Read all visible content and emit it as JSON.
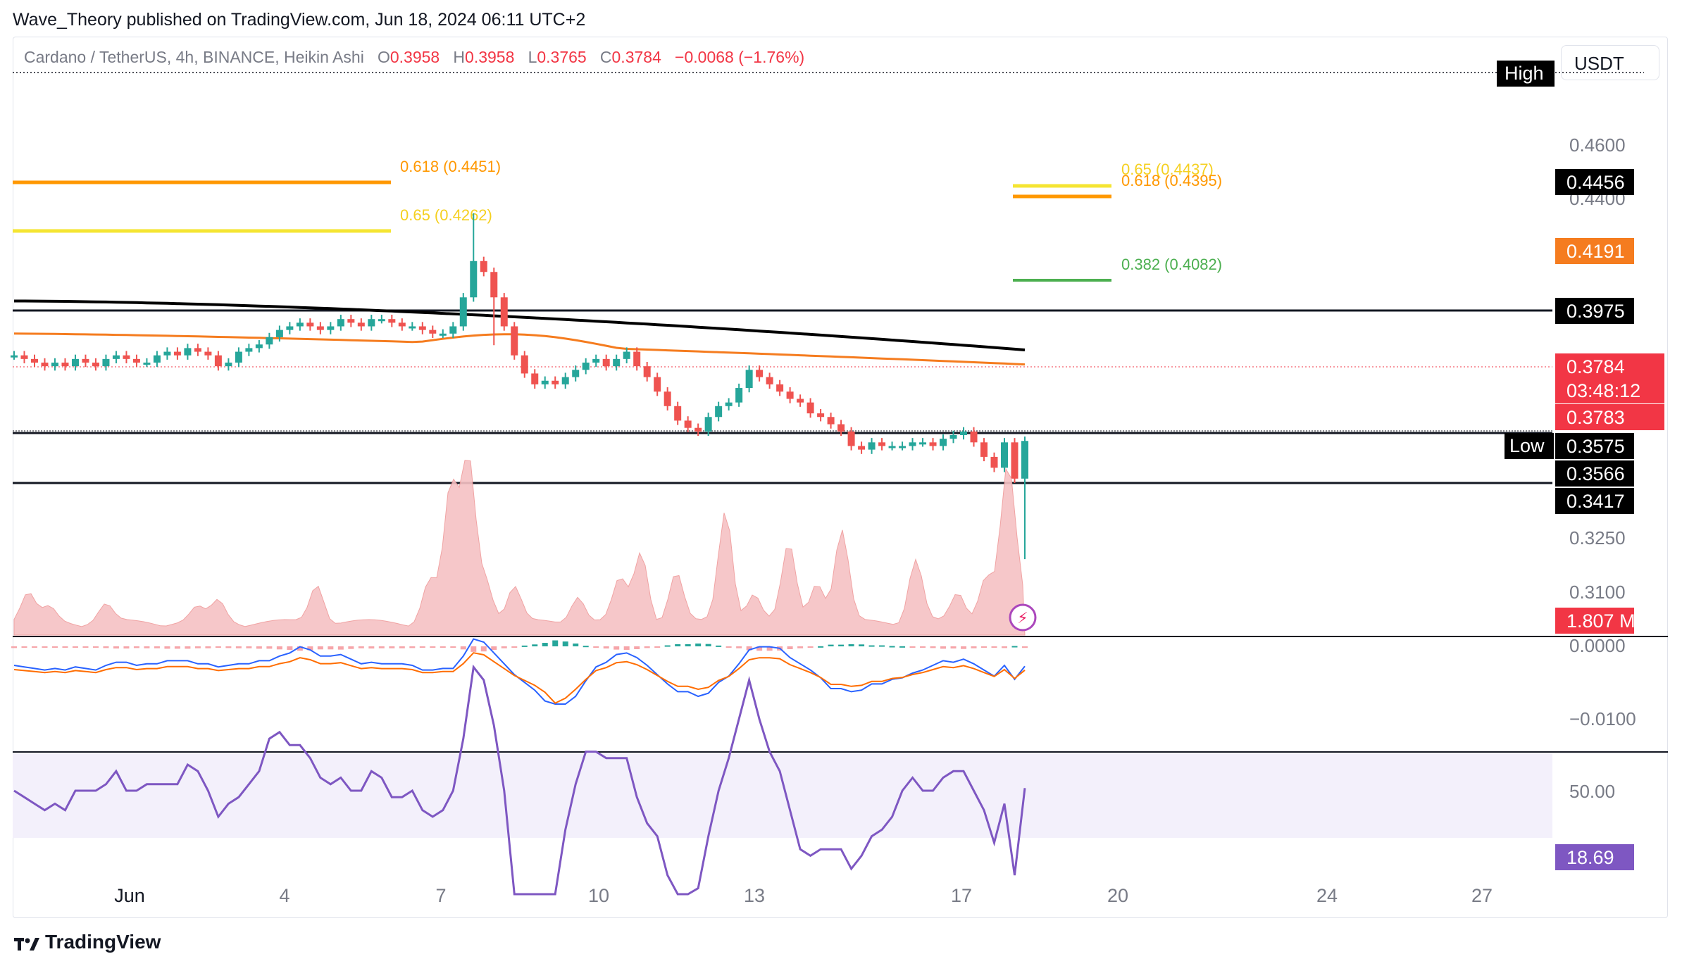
{
  "header": {
    "text": "Wave_Theory published on TradingView.com, Jun 18, 2024 06:11 UTC+2"
  },
  "legend": {
    "symbol": "Cardano / TetherUS, 4h, BINANCE, Heikin Ashi",
    "o_label": "O",
    "o": "0.3958",
    "h_label": "H",
    "h": "0.3958",
    "l_label": "L",
    "l": "0.3765",
    "c_label": "C",
    "c": "0.3784",
    "change": "−0.0068 (−1.76%)"
  },
  "currency": "USDT",
  "footer": {
    "brand": "TradingView"
  },
  "colors": {
    "up": "#26a69a",
    "down": "#ef5350",
    "ema_orange": "#f57c1f",
    "ema_black": "#000000",
    "fib_yellow": "#f5e532",
    "fib_orange": "#ff9800",
    "fib_green": "#4caf50",
    "macd_line": "#2962ff",
    "signal_line": "#ff6d00",
    "rsi_line": "#7e57c2"
  },
  "chart_data": [
    {
      "type": "candlestick",
      "x_ticks": [
        "Jun",
        "4",
        "7",
        "10",
        "13",
        "17",
        "20",
        "24",
        "27"
      ],
      "price_axis_ticks": [
        "0.4600",
        "0.4400",
        "0.3250",
        "0.3100"
      ],
      "price_labels": [
        {
          "value": "0.4456",
          "tag": ""
        },
        {
          "value": "0.4191",
          "tag": ""
        },
        {
          "value": "0.3975",
          "tag": ""
        },
        {
          "value": "0.3784",
          "tag": ""
        },
        {
          "value": "03:48:12",
          "tag": ""
        },
        {
          "value": "0.3783",
          "tag": ""
        },
        {
          "value": "0.3575",
          "tag": "Low"
        },
        {
          "value": "0.3566",
          "tag": ""
        },
        {
          "value": "0.3417",
          "tag": ""
        }
      ],
      "high_tag": "High",
      "fib_left": [
        {
          "label": "0.618 (0.4451)"
        },
        {
          "label": "0.65 (0.4262)"
        }
      ],
      "fib_right": [
        {
          "label": "0.65 (0.4437)"
        },
        {
          "label": "0.618 (0.4395)"
        },
        {
          "label": "0.382 (0.4082)"
        }
      ],
      "candles_close": [
        0.402,
        0.401,
        0.4,
        0.399,
        0.4,
        0.399,
        0.401,
        0.4,
        0.399,
        0.401,
        0.402,
        0.401,
        0.4,
        0.4,
        0.402,
        0.403,
        0.402,
        0.404,
        0.403,
        0.402,
        0.399,
        0.4,
        0.403,
        0.404,
        0.405,
        0.407,
        0.409,
        0.41,
        0.411,
        0.41,
        0.409,
        0.41,
        0.412,
        0.411,
        0.41,
        0.412,
        0.412,
        0.411,
        0.41,
        0.41,
        0.409,
        0.408,
        0.408,
        0.41,
        0.418,
        0.428,
        0.425,
        0.418,
        0.41,
        0.402,
        0.397,
        0.394,
        0.395,
        0.394,
        0.396,
        0.398,
        0.4,
        0.401,
        0.399,
        0.401,
        0.403,
        0.399,
        0.396,
        0.392,
        0.388,
        0.384,
        0.382,
        0.381,
        0.385,
        0.388,
        0.389,
        0.393,
        0.398,
        0.396,
        0.394,
        0.392,
        0.39,
        0.389,
        0.386,
        0.385,
        0.383,
        0.381,
        0.377,
        0.376,
        0.378,
        0.377,
        0.377,
        0.377,
        0.378,
        0.378,
        0.377,
        0.379,
        0.38,
        0.381,
        0.378,
        0.374,
        0.371,
        0.378,
        0.368,
        0.3784
      ],
      "ema_orange_start": 0.408,
      "ema_orange_end": 0.3995,
      "ema_black_start": 0.417,
      "ema_black_end": 0.4035
    },
    {
      "type": "area",
      "name": "Volume",
      "last_label": "1.807 M"
    },
    {
      "type": "line",
      "name": "MACD",
      "axis_ticks": [
        "0.0000",
        "−0.0100"
      ]
    },
    {
      "type": "line",
      "name": "RSI",
      "axis_ticks": [
        "50.00"
      ],
      "last_label": "18.69"
    }
  ]
}
